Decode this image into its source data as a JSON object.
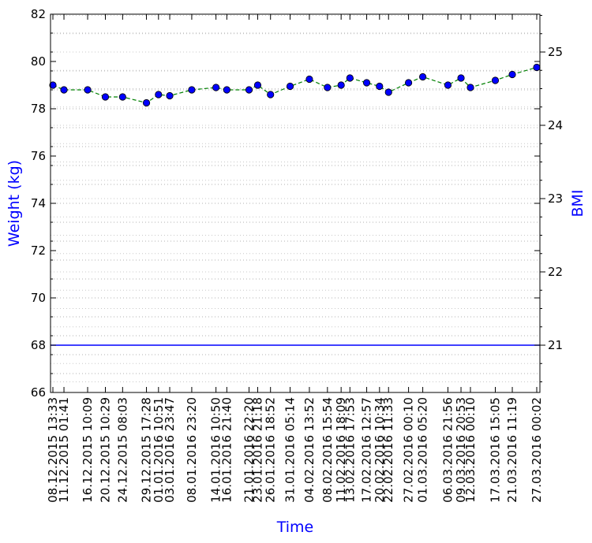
{
  "chart_data": {
    "type": "line",
    "xlabel": "Time",
    "ylabel": "Weight (kg)",
    "y2label": "BMI",
    "label_color": "#0000ff",
    "line_color": "#008000",
    "marker_color": "#0000ff",
    "target_color": "#0000ff",
    "grid": "dotted, horizontal minor ticks",
    "ylim": [
      66,
      82
    ],
    "y_ticks": [
      66,
      68,
      70,
      72,
      74,
      76,
      78,
      80,
      82
    ],
    "y2_ticks": [
      21,
      22,
      23,
      24,
      25
    ],
    "target_weight": 68,
    "x_ticks": [
      "08.12.2015 13:33",
      "11.12.2015 01:41",
      "16.12.2015 10:09",
      "20.12.2015 10:29",
      "24.12.2015 08:03",
      "29.12.2015 17:28",
      "01.01.2016 10:51",
      "03.01.2016 23:47",
      "08.01.2016 23:20",
      "14.01.2016 10:50",
      "16.01.2016 21:40",
      "21.01.2016 22:20",
      "23.01.2016 21:18",
      "26.01.2016 18:52",
      "31.01.2016 05:14",
      "04.02.2016 13:52",
      "08.02.2016 15:54",
      "11.02.2016 18:09",
      "13.02.2016 17:53",
      "17.02.2016 12:57",
      "20.02.2016 10:34",
      "22.02.2016 11:33",
      "27.02.2016 00:10",
      "01.03.2016 05:20",
      "06.03.2016 21:56",
      "09.03.2016 20:53",
      "12.03.2016 00:10",
      "17.03.2016 15:05",
      "21.03.2016 11:19",
      "27.03.2016 00:02"
    ],
    "series": [
      {
        "name": "",
        "x": [
          "08.12.2015 13:33",
          "11.12.2015 01:41",
          "16.12.2015 10:09",
          "20.12.2015 10:29",
          "24.12.2015 08:03",
          "29.12.2015 17:28",
          "01.01.2016 10:51",
          "03.01.2016 23:47",
          "08.01.2016 23:20",
          "14.01.2016 10:50",
          "16.01.2016 21:40",
          "21.01.2016 22:20",
          "23.01.2016 21:18",
          "26.01.2016 18:52",
          "31.01.2016 05:14",
          "04.02.2016 13:52",
          "08.02.2016 15:54",
          "11.02.2016 18:09",
          "13.02.2016 17:53",
          "17.02.2016 12:57",
          "20.02.2016 10:34",
          "22.02.2016 11:33",
          "27.02.2016 00:10",
          "01.03.2016 05:20",
          "06.03.2016 21:56",
          "09.03.2016 20:53",
          "12.03.2016 00:10",
          "17.03.2016 15:05",
          "21.03.2016 11:19",
          "27.03.2016 00:02"
        ],
        "values": [
          79.0,
          78.8,
          78.8,
          78.5,
          78.5,
          78.25,
          78.6,
          78.55,
          78.8,
          78.9,
          78.8,
          78.8,
          79.0,
          78.6,
          78.95,
          79.25,
          78.9,
          79.0,
          79.3,
          79.1,
          78.95,
          78.7,
          79.1,
          79.35,
          79.0,
          79.3,
          78.9,
          79.2,
          79.45,
          79.75
        ]
      }
    ]
  }
}
